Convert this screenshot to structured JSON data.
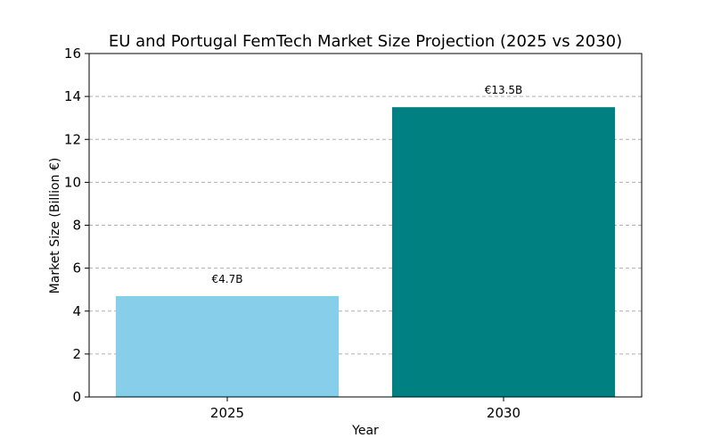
{
  "chart_data": {
    "type": "bar",
    "title": "EU and Portugal FemTech Market Size Projection (2025 vs 2030)",
    "xlabel": "Year",
    "ylabel": "Market Size (Billion €)",
    "categories": [
      "2025",
      "2030"
    ],
    "values": [
      4.7,
      13.5
    ],
    "data_labels": [
      "€4.7B",
      "€13.5B"
    ],
    "colors": [
      "#87ceeb",
      "#008080"
    ],
    "ylim": [
      0,
      16
    ],
    "yticks": [
      0,
      2,
      4,
      6,
      8,
      10,
      12,
      14,
      16
    ],
    "grid": "y-dashed"
  }
}
